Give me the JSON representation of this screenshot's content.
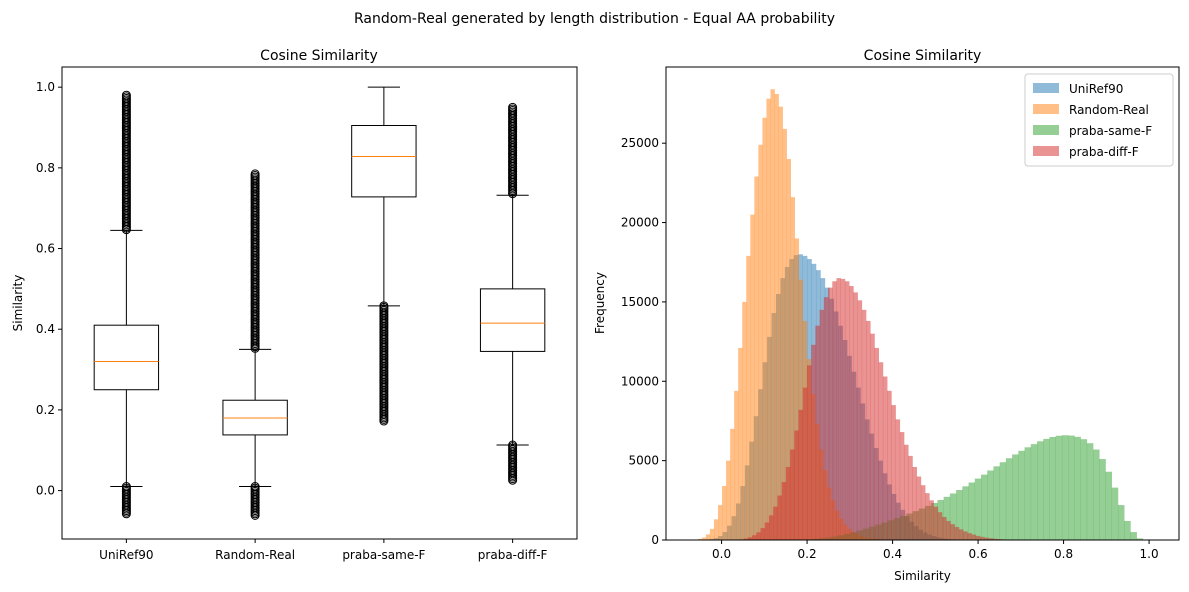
{
  "suptitle": "Random-Real generated by length distribution - Equal AA probability",
  "colors": {
    "uniref": "#1f77b4",
    "random": "#ff7f0e",
    "same": "#2ca02c",
    "diff": "#d62728",
    "median": "#ff7f0e"
  },
  "chart_data": [
    {
      "type": "box",
      "title": "Cosine Similarity",
      "xlabel": "",
      "ylabel": "Similarity",
      "ylim": [
        -0.12,
        1.05
      ],
      "yticks": [
        0.0,
        0.2,
        0.4,
        0.6,
        0.8,
        1.0
      ],
      "ytick_labels": [
        "0.0",
        "0.2",
        "0.4",
        "0.6",
        "0.8",
        "1.0"
      ],
      "categories": [
        "UniRef90",
        "Random-Real",
        "praba-same-F",
        "praba-diff-F"
      ],
      "boxes": [
        {
          "name": "UniRef90",
          "whislo": 0.01,
          "q1": 0.25,
          "med": 0.32,
          "q3": 0.41,
          "whishi": 0.645,
          "fliers_low": [
            -0.06,
            0.01
          ],
          "fliers_high": [
            0.645,
            0.98
          ]
        },
        {
          "name": "Random-Real",
          "whislo": 0.01,
          "q1": 0.138,
          "med": 0.18,
          "q3": 0.224,
          "whishi": 0.35,
          "fliers_low": [
            -0.065,
            0.01
          ],
          "fliers_high": [
            0.35,
            0.785
          ]
        },
        {
          "name": "praba-same-F",
          "whislo": 0.458,
          "q1": 0.728,
          "med": 0.828,
          "q3": 0.905,
          "whishi": 1.0,
          "fliers_low": [
            0.17,
            0.458
          ],
          "fliers_high": []
        },
        {
          "name": "praba-diff-F",
          "whislo": 0.113,
          "q1": 0.345,
          "med": 0.415,
          "q3": 0.5,
          "whishi": 0.732,
          "fliers_low": [
            0.022,
            0.113
          ],
          "fliers_high": [
            0.732,
            0.95
          ]
        }
      ]
    },
    {
      "type": "histogram",
      "title": "Cosine Similarity",
      "xlabel": "Similarity",
      "ylabel": "Frequency",
      "xlim": [
        -0.13,
        1.07
      ],
      "ylim": [
        0,
        29800
      ],
      "xticks": [
        0.0,
        0.2,
        0.4,
        0.6,
        0.8,
        1.0
      ],
      "xtick_labels": [
        "0.0",
        "0.2",
        "0.4",
        "0.6",
        "0.8",
        "1.0"
      ],
      "yticks": [
        0,
        5000,
        10000,
        15000,
        20000,
        25000
      ],
      "ytick_labels": [
        "0",
        "5000",
        "10000",
        "15000",
        "20000",
        "25000"
      ],
      "legend_position": "top-right",
      "alpha": 0.5,
      "series": [
        {
          "name": "UniRef90",
          "color_key": "uniref",
          "x_start": -0.06,
          "x_end": 0.98,
          "values": [
            0,
            10,
            30,
            60,
            120,
            250,
            500,
            900,
            1500,
            2300,
            3400,
            4700,
            6200,
            7800,
            9500,
            11200,
            12800,
            14300,
            15500,
            16500,
            17200,
            17700,
            17950,
            18000,
            17900,
            17700,
            17400,
            17000,
            16500,
            15900,
            15200,
            14400,
            13500,
            12600,
            11600,
            10600,
            9600,
            8600,
            7600,
            6700,
            5800,
            5000,
            4200,
            3500,
            2900,
            2350,
            1900,
            1500,
            1150,
            880,
            650,
            480,
            350,
            250,
            170,
            110,
            70,
            45,
            28,
            17,
            10,
            6,
            4,
            2,
            1,
            1,
            0,
            0,
            0,
            0,
            0,
            0,
            0,
            0,
            0,
            0,
            0,
            0,
            0,
            0,
            0,
            0,
            0,
            0,
            0,
            0,
            0,
            0,
            0,
            0,
            0,
            0,
            0,
            0,
            0,
            0,
            0,
            0,
            0,
            0
          ]
        },
        {
          "name": "Random-Real",
          "color_key": "random",
          "x_start": -0.065,
          "x_end": 0.785,
          "values": [
            20,
            60,
            150,
            350,
            700,
            1300,
            2200,
            3400,
            5000,
            7000,
            9400,
            12100,
            15000,
            17900,
            20500,
            22900,
            24900,
            26600,
            27800,
            28400,
            28100,
            27300,
            25900,
            24000,
            21600,
            19000,
            16400,
            13800,
            11400,
            9200,
            7300,
            5700,
            4400,
            3300,
            2500,
            1850,
            1350,
            980,
            700,
            500,
            350,
            250,
            175,
            120,
            85,
            60,
            40,
            28,
            19,
            13,
            9,
            6,
            4,
            3,
            2,
            1,
            1,
            0,
            0,
            0,
            0,
            0,
            0,
            0,
            0,
            0,
            0,
            0,
            0,
            0,
            0,
            0,
            0,
            0,
            0,
            0,
            0,
            0,
            0,
            0,
            0,
            0,
            0,
            0,
            0,
            0,
            0,
            0,
            0,
            0
          ]
        },
        {
          "name": "praba-same-F",
          "color_key": "same",
          "x_start": 0.17,
          "x_end": 1.0,
          "values": [
            10,
            20,
            40,
            70,
            110,
            160,
            220,
            300,
            390,
            490,
            600,
            720,
            840,
            970,
            1100,
            1240,
            1380,
            1520,
            1670,
            1820,
            1980,
            2150,
            2330,
            2520,
            2720,
            2930,
            3150,
            3380,
            3620,
            3870,
            4120,
            4380,
            4640,
            4900,
            5150,
            5390,
            5620,
            5840,
            6040,
            6220,
            6370,
            6490,
            6570,
            6600,
            6580,
            6500,
            6350,
            6100,
            5700,
            5100,
            4300,
            3300,
            2200,
            1200,
            500,
            100,
            0
          ]
        },
        {
          "name": "praba-diff-F",
          "color_key": "diff",
          "x_start": 0.022,
          "x_end": 0.95,
          "values": [
            5,
            15,
            40,
            90,
            170,
            300,
            480,
            750,
            1100,
            1550,
            2100,
            2800,
            3650,
            4600,
            5700,
            6900,
            8200,
            9600,
            11000,
            12300,
            13500,
            14500,
            15300,
            15900,
            16300,
            16500,
            16450,
            16300,
            16000,
            15600,
            15100,
            14500,
            13800,
            13000,
            12100,
            11200,
            10300,
            9400,
            8500,
            7600,
            6800,
            6000,
            5300,
            4600,
            4000,
            3450,
            2950,
            2500,
            2100,
            1750,
            1450,
            1200,
            1000,
            820,
            670,
            540,
            430,
            340,
            260,
            200,
            150,
            110,
            80,
            57,
            40,
            28,
            19,
            13,
            9,
            6,
            4,
            2,
            1,
            1,
            0,
            0,
            0,
            0,
            0,
            0,
            0,
            0,
            0,
            0,
            0,
            0,
            0,
            0,
            0,
            0,
            0,
            0,
            0,
            0
          ]
        }
      ]
    }
  ]
}
